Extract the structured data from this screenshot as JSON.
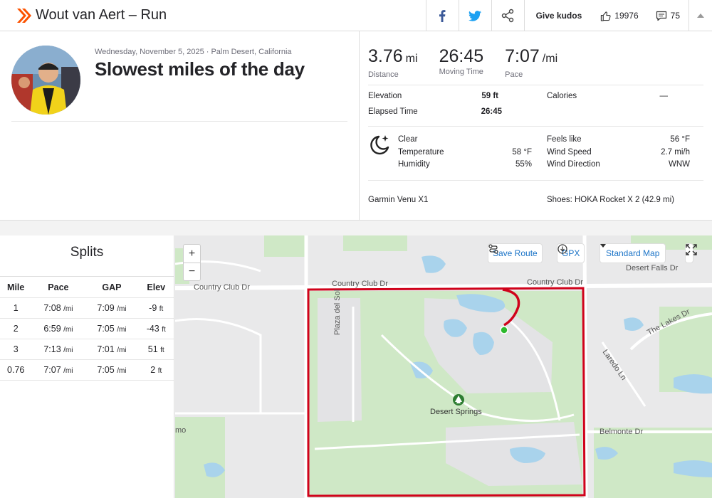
{
  "topbar": {
    "title": "Wout van Aert – Run",
    "kudos_label": "Give kudos",
    "kudos_count": "19976",
    "comment_count": "75",
    "brand_color": "#fc5200"
  },
  "activity": {
    "date_location": "Wednesday, November 5, 2025 · Palm Desert, California",
    "name": "Slowest miles of the day"
  },
  "stats": {
    "distance": {
      "value": "3.76",
      "unit": "mi",
      "label": "Distance"
    },
    "moving_time": {
      "value": "26:45",
      "label": "Moving Time"
    },
    "pace": {
      "value": "7:07",
      "unit": "/mi",
      "label": "Pace"
    },
    "elevation_label": "Elevation",
    "elevation_value": "59 ft",
    "calories_label": "Calories",
    "calories_value": "—",
    "elapsed_label": "Elapsed Time",
    "elapsed_value": "26:45"
  },
  "weather": {
    "condition": "Clear",
    "temperature_label": "Temperature",
    "temperature_value": "58 °F",
    "humidity_label": "Humidity",
    "humidity_value": "55%",
    "feels_like_label": "Feels like",
    "feels_like_value": "56 °F",
    "wind_speed_label": "Wind Speed",
    "wind_speed_value": "2.7 mi/h",
    "wind_dir_label": "Wind Direction",
    "wind_dir_value": "WNW"
  },
  "gear": {
    "device": "Garmin Venu X1",
    "shoes": "Shoes: HOKA Rocket X 2 (42.9 mi)"
  },
  "splits": {
    "title": "Splits",
    "columns": [
      "Mile",
      "Pace",
      "GAP",
      "Elev"
    ],
    "rows": [
      {
        "mile": "1",
        "pace": "7:08",
        "gap": "7:09",
        "elev": "-9"
      },
      {
        "mile": "2",
        "pace": "6:59",
        "gap": "7:05",
        "elev": "-43"
      },
      {
        "mile": "3",
        "pace": "7:13",
        "gap": "7:01",
        "elev": "51"
      },
      {
        "mile": "0.76",
        "pace": "7:07",
        "gap": "7:05",
        "elev": "2"
      }
    ],
    "pace_unit": "/mi",
    "elev_unit": "ft"
  },
  "map": {
    "save_route": "Save Route",
    "gpx": "GPX",
    "map_type": "Standard Map",
    "route_color": "#d0021b",
    "labels": {
      "country_club_left": "Country Club Dr",
      "country_club_right": "Country Club Dr",
      "desert_falls": "Desert Falls Dr",
      "plaza_del_sol": "Plaza del Sol",
      "the_lakes": "The Lakes Dr",
      "laredo": "Laredo Ln",
      "desert_springs": "Desert Springs",
      "belmonte": "Belmonte Dr",
      "mo": "mo"
    }
  }
}
